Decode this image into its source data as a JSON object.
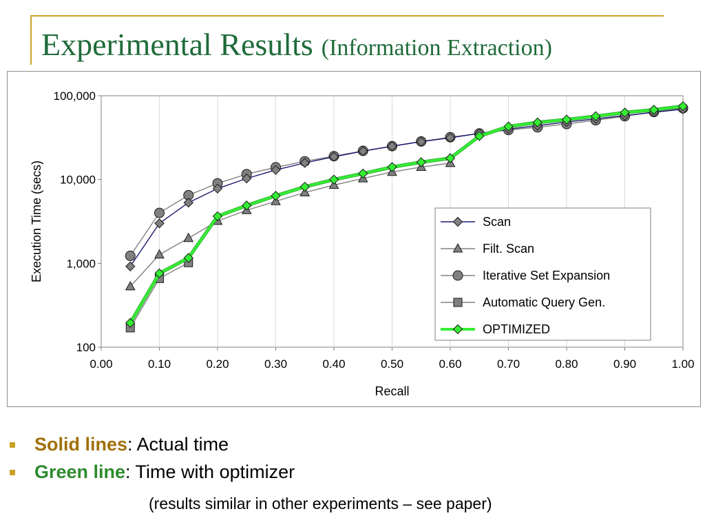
{
  "slide": {
    "title": "Experimental Results",
    "subtitle": "(Information Extraction)",
    "bullets": [
      {
        "key": "Solid lines",
        "rest": ": Actual time"
      },
      {
        "key": "Green line",
        "rest": ": Time with optimizer"
      }
    ],
    "note": "(results similar in other experiments – see paper)"
  },
  "chart_data": {
    "type": "line",
    "xlabel": "Recall",
    "ylabel": "Execution Time (secs)",
    "yscale": "log",
    "xlim": [
      0,
      1
    ],
    "ylim": [
      100,
      100000
    ],
    "x_ticks": [
      "0.00",
      "0.10",
      "0.20",
      "0.30",
      "0.40",
      "0.50",
      "0.60",
      "0.70",
      "0.80",
      "0.90",
      "1.00"
    ],
    "y_ticks": [
      {
        "value": 100,
        "label": "100"
      },
      {
        "value": 1000,
        "label": "1,000"
      },
      {
        "value": 10000,
        "label": "10,000"
      },
      {
        "value": 100000,
        "label": "100,000"
      }
    ],
    "grid": "vertical",
    "legend_position": "center-right",
    "series": [
      {
        "name": "Scan",
        "color": "#1a1a6e",
        "marker": "diamond",
        "x": [
          0.05,
          0.1,
          0.15,
          0.2,
          0.25,
          0.3,
          0.35,
          0.4,
          0.45,
          0.5,
          0.55,
          0.6,
          0.65,
          0.7,
          0.75,
          0.8,
          0.85,
          0.9,
          0.95,
          1.0
        ],
        "y": [
          920,
          3000,
          5300,
          7800,
          10300,
          13000,
          15800,
          18700,
          21800,
          25000,
          28300,
          31500,
          35500,
          40000,
          44000,
          48500,
          53000,
          58000,
          63500,
          69000
        ]
      },
      {
        "name": "Filt. Scan",
        "color": "#808080",
        "marker": "triangle",
        "x": [
          0.05,
          0.1,
          0.15,
          0.2,
          0.25,
          0.3,
          0.35,
          0.4,
          0.45,
          0.5,
          0.55,
          0.6
        ],
        "y": [
          530,
          1270,
          2000,
          3200,
          4300,
          5500,
          7000,
          8600,
          10300,
          12300,
          14100,
          15700
        ]
      },
      {
        "name": "Iterative Set Expansion",
        "color": "#808080",
        "marker": "circle",
        "x": [
          0.05,
          0.1,
          0.15,
          0.2,
          0.25,
          0.3,
          0.35,
          0.4,
          0.45,
          0.5,
          0.55,
          0.6,
          0.65,
          0.7,
          0.75,
          0.8,
          0.85,
          0.9,
          0.95,
          1.0
        ],
        "y": [
          1230,
          4000,
          6500,
          9000,
          11600,
          14000,
          16500,
          19000,
          22000,
          25000,
          28500,
          32000,
          35500,
          39000,
          42000,
          46000,
          51000,
          57000,
          64000,
          71000
        ]
      },
      {
        "name": "Automatic Query Gen.",
        "color": "#808080",
        "marker": "square",
        "x": [
          0.05,
          0.1,
          0.15
        ],
        "y": [
          170,
          660,
          1020
        ]
      },
      {
        "name": "OPTIMIZED",
        "color": "#33ee33",
        "marker": "diamond-green",
        "x": [
          0.05,
          0.1,
          0.15,
          0.2,
          0.25,
          0.3,
          0.35,
          0.4,
          0.45,
          0.5,
          0.55,
          0.6,
          0.65,
          0.7,
          0.75,
          0.8,
          0.85,
          0.9,
          0.95,
          1.0
        ],
        "y": [
          195,
          760,
          1160,
          3650,
          4900,
          6400,
          8200,
          10000,
          11800,
          14100,
          16100,
          18000,
          33000,
          43000,
          48000,
          52000,
          57000,
          63000,
          68000,
          75000
        ]
      }
    ]
  }
}
